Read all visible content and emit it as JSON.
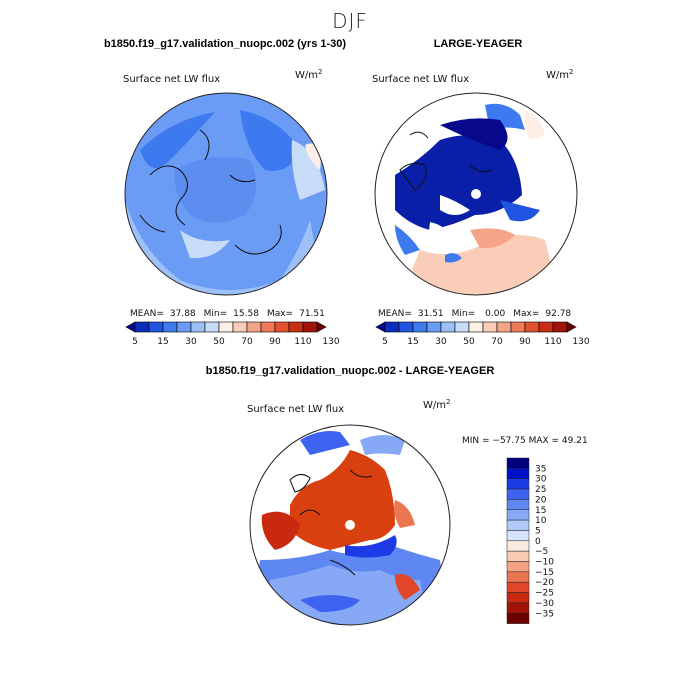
{
  "figure": {
    "season": "DJF",
    "left_title": "b1850.f19_g17.validation_nuopc.002 (yrs 1-30)",
    "right_title": "LARGE-YEAGER",
    "diff_title": "b1850.f19_g17.validation_nuopc.002 - LARGE-YEAGER"
  },
  "colors": {
    "abs_scale": [
      "#08088c",
      "#0a2dbf",
      "#1f55e0",
      "#3d7af0",
      "#6a9cf5",
      "#9dc0f7",
      "#c8dcfa",
      "#fdeee6",
      "#f9cdb8",
      "#f4a487",
      "#ee7a58",
      "#e2522f",
      "#c92d13",
      "#9e1408",
      "#6b0000"
    ],
    "diff_scale": [
      "#000080",
      "#0012c9",
      "#1c3ae6",
      "#3d63f0",
      "#5f87f2",
      "#86a8f5",
      "#afc9f8",
      "#d6e5fb",
      "#fbece2",
      "#f8cbb4",
      "#f3a283",
      "#ec7552",
      "#e0472a",
      "#c92a0f",
      "#a1140a",
      "#6e0000"
    ],
    "ocean_fill_left": "#5c8ef0",
    "ocean_fill_right": "#0a1fa8",
    "ocean_fill_diff": "#d8400f"
  },
  "icons": {
    "pole": "pole-hole-icon"
  },
  "chart_data": [
    {
      "type": "heatmap",
      "title": "b1850.f19_g17.validation_nuopc.002 (yrs 1-30)",
      "field_label": "Surface net LW flux",
      "units": "W/m",
      "units_exp": "2",
      "stats": {
        "mean_label": "MEAN=",
        "mean": "37.88",
        "min_label": "Min=",
        "min": "15.58",
        "max_label": "Max=",
        "max": "71.51"
      },
      "colorbar_levels": [
        5,
        10,
        15,
        20,
        30,
        40,
        50,
        60,
        70,
        80,
        90,
        100,
        110,
        120,
        130
      ],
      "colorbar_tick_labels": [
        "5",
        "15",
        "30",
        "50",
        "70",
        "90",
        "110",
        "130"
      ]
    },
    {
      "type": "heatmap",
      "title": "LARGE-YEAGER",
      "field_label": "Surface net LW flux",
      "units": "W/m",
      "units_exp": "2",
      "stats": {
        "mean_label": "MEAN=",
        "mean": "31.51",
        "min_label": "Min=",
        "min": "0.00",
        "max_label": "Max=",
        "max": "92.78"
      },
      "colorbar_levels": [
        5,
        10,
        15,
        20,
        30,
        40,
        50,
        60,
        70,
        80,
        90,
        100,
        110,
        120,
        130
      ],
      "colorbar_tick_labels": [
        "5",
        "15",
        "30",
        "50",
        "70",
        "90",
        "110",
        "130"
      ]
    },
    {
      "type": "heatmap",
      "title": "b1850.f19_g17.validation_nuopc.002 - LARGE-YEAGER",
      "field_label": "Surface net LW flux",
      "units": "W/m",
      "units_exp": "2",
      "stats_text": "MIN = −57.75 MAX =  49.21",
      "colorbar_levels": [
        35,
        30,
        25,
        20,
        15,
        10,
        5,
        0,
        -5,
        -10,
        -15,
        -20,
        -25,
        -30,
        -35
      ],
      "colorbar_tick_labels": [
        "35",
        "30",
        "25",
        "20",
        "15",
        "10",
        "5",
        "0",
        "−5",
        "−10",
        "−15",
        "−20",
        "−25",
        "−30",
        "−35"
      ]
    }
  ]
}
